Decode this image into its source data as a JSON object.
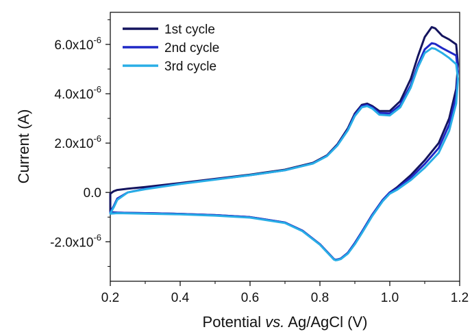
{
  "chart_data": {
    "type": "line",
    "title": "",
    "xlabel_parts": [
      "Potential ",
      "vs.",
      " Ag/AgCl (V)"
    ],
    "ylabel": "Current (A)",
    "xlim": [
      0.2,
      1.2
    ],
    "ylim": [
      -3.6e-06,
      7.3e-06
    ],
    "x_ticks": [
      0.2,
      0.4,
      0.6,
      0.8,
      1.0,
      1.2
    ],
    "x_tick_labels": [
      "0.2",
      "0.4",
      "0.6",
      "0.8",
      "1.0",
      "1.2"
    ],
    "y_ticks": [
      -2e-06,
      0.0,
      2e-06,
      4e-06,
      6e-06
    ],
    "y_tick_labels": [
      {
        "mantissa": "-2.0x10",
        "exp": "-6"
      },
      {
        "mantissa": "0.0",
        "exp": ""
      },
      {
        "mantissa": "2.0x10",
        "exp": "-6"
      },
      {
        "mantissa": "4.0x10",
        "exp": "-6"
      },
      {
        "mantissa": "6.0x10",
        "exp": "-6"
      }
    ],
    "grid": false,
    "legend_position": "top-left",
    "series": [
      {
        "name": "1st cycle",
        "color": "#14145e",
        "x": [
          0.2,
          0.21,
          0.22,
          0.25,
          0.3,
          0.4,
          0.5,
          0.6,
          0.7,
          0.78,
          0.82,
          0.85,
          0.88,
          0.9,
          0.92,
          0.935,
          0.95,
          0.97,
          1.0,
          1.03,
          1.06,
          1.08,
          1.1,
          1.12,
          1.13,
          1.15,
          1.17,
          1.19,
          1.195,
          1.19,
          1.17,
          1.14,
          1.1,
          1.06,
          1.02,
          1.0,
          0.98,
          0.95,
          0.92,
          0.9,
          0.88,
          0.86,
          0.85,
          0.845,
          0.84,
          0.83,
          0.8,
          0.75,
          0.7,
          0.6,
          0.5,
          0.4,
          0.3,
          0.25,
          0.22,
          0.2,
          0.2
        ],
        "y": [
          -5e-08,
          5e-08,
          1e-07,
          1.5e-07,
          2.2e-07,
          3.8e-07,
          5.5e-07,
          7.2e-07,
          9.2e-07,
          1.2e-06,
          1.5e-06,
          1.95e-06,
          2.6e-06,
          3.2e-06,
          3.55e-06,
          3.6e-06,
          3.5e-06,
          3.3e-06,
          3.3e-06,
          3.7e-06,
          4.6e-06,
          5.5e-06,
          6.3e-06,
          6.7e-06,
          6.65e-06,
          6.35e-06,
          6.2e-06,
          6e-06,
          5.2e-06,
          4.2e-06,
          3e-06,
          2e-06,
          1.3e-06,
          7e-07,
          2e-07,
          0.0,
          -3e-07,
          -9e-07,
          -1.6e-06,
          -2.05e-06,
          -2.45e-06,
          -2.68e-06,
          -2.72e-06,
          -2.73e-06,
          -2.7e-06,
          -2.55e-06,
          -2.1e-06,
          -1.55e-06,
          -1.22e-06,
          -1e-06,
          -9.2e-07,
          -8.7e-07,
          -8.4e-07,
          -8.3e-07,
          -8.2e-07,
          -8e-07,
          -5e-08
        ]
      },
      {
        "name": "2nd cycle",
        "color": "#1f28c6",
        "x": [
          0.2,
          0.21,
          0.22,
          0.25,
          0.3,
          0.4,
          0.5,
          0.6,
          0.7,
          0.78,
          0.82,
          0.85,
          0.88,
          0.9,
          0.92,
          0.935,
          0.95,
          0.97,
          1.0,
          1.03,
          1.06,
          1.08,
          1.1,
          1.12,
          1.13,
          1.15,
          1.17,
          1.19,
          1.195,
          1.19,
          1.17,
          1.14,
          1.1,
          1.06,
          1.02,
          1.0,
          0.98,
          0.95,
          0.92,
          0.9,
          0.88,
          0.86,
          0.85,
          0.845,
          0.84,
          0.83,
          0.8,
          0.75,
          0.7,
          0.6,
          0.5,
          0.4,
          0.3,
          0.25,
          0.22,
          0.2,
          0.2
        ],
        "y": [
          -8e-07,
          -5.5e-07,
          -2.5e-07,
          0.0,
          1.5e-07,
          3.5e-07,
          5.3e-07,
          7e-07,
          9e-07,
          1.18e-06,
          1.48e-06,
          1.92e-06,
          2.55e-06,
          3.15e-06,
          3.5e-06,
          3.55e-06,
          3.45e-06,
          3.22e-06,
          3.2e-06,
          3.55e-06,
          4.35e-06,
          5.15e-06,
          5.8e-06,
          6.05e-06,
          6.02e-06,
          5.85e-06,
          5.7e-06,
          5.55e-06,
          4.9e-06,
          3.9e-06,
          2.75e-06,
          1.8e-06,
          1.15e-06,
          6e-07,
          1.5e-07,
          0.0,
          -3e-07,
          -9e-07,
          -1.6e-06,
          -2.05e-06,
          -2.45e-06,
          -2.68e-06,
          -2.72e-06,
          -2.73e-06,
          -2.7e-06,
          -2.55e-06,
          -2.1e-06,
          -1.55e-06,
          -1.22e-06,
          -1e-06,
          -9.2e-07,
          -8.7e-07,
          -8.4e-07,
          -8.3e-07,
          -8.2e-07,
          -8.2e-07,
          -8e-07
        ]
      },
      {
        "name": "3rd cycle",
        "color": "#29aee6",
        "x": [
          0.2,
          0.21,
          0.22,
          0.25,
          0.3,
          0.4,
          0.5,
          0.6,
          0.7,
          0.78,
          0.82,
          0.85,
          0.88,
          0.9,
          0.92,
          0.935,
          0.95,
          0.97,
          1.0,
          1.03,
          1.06,
          1.08,
          1.1,
          1.12,
          1.13,
          1.15,
          1.17,
          1.19,
          1.195,
          1.19,
          1.17,
          1.14,
          1.1,
          1.06,
          1.02,
          1.0,
          0.98,
          0.95,
          0.92,
          0.9,
          0.88,
          0.86,
          0.85,
          0.845,
          0.84,
          0.83,
          0.8,
          0.75,
          0.7,
          0.6,
          0.5,
          0.4,
          0.3,
          0.25,
          0.22,
          0.2,
          0.2
        ],
        "y": [
          -8.5e-07,
          -6e-07,
          -3e-07,
          0.0,
          1.3e-07,
          3.4e-07,
          5.2e-07,
          7e-07,
          9e-07,
          1.17e-06,
          1.47e-06,
          1.9e-06,
          2.52e-06,
          3.1e-06,
          3.45e-06,
          3.5e-06,
          3.4e-06,
          3.15e-06,
          3.12e-06,
          3.45e-06,
          4.25e-06,
          5.05e-06,
          5.65e-06,
          5.85e-06,
          5.82e-06,
          5.65e-06,
          5.45e-06,
          5.2e-06,
          4.6e-06,
          3.6e-06,
          2.5e-06,
          1.6e-06,
          1e-06,
          5e-07,
          1e-07,
          -5e-08,
          -3.5e-07,
          -9.5e-07,
          -1.65e-06,
          -2.1e-06,
          -2.48e-06,
          -2.7e-06,
          -2.74e-06,
          -2.75e-06,
          -2.72e-06,
          -2.57e-06,
          -2.12e-06,
          -1.57e-06,
          -1.24e-06,
          -1.02e-06,
          -9.4e-07,
          -8.9e-07,
          -8.6e-07,
          -8.5e-07,
          -8.4e-07,
          -8.6e-07,
          -8.5e-07
        ]
      }
    ]
  }
}
